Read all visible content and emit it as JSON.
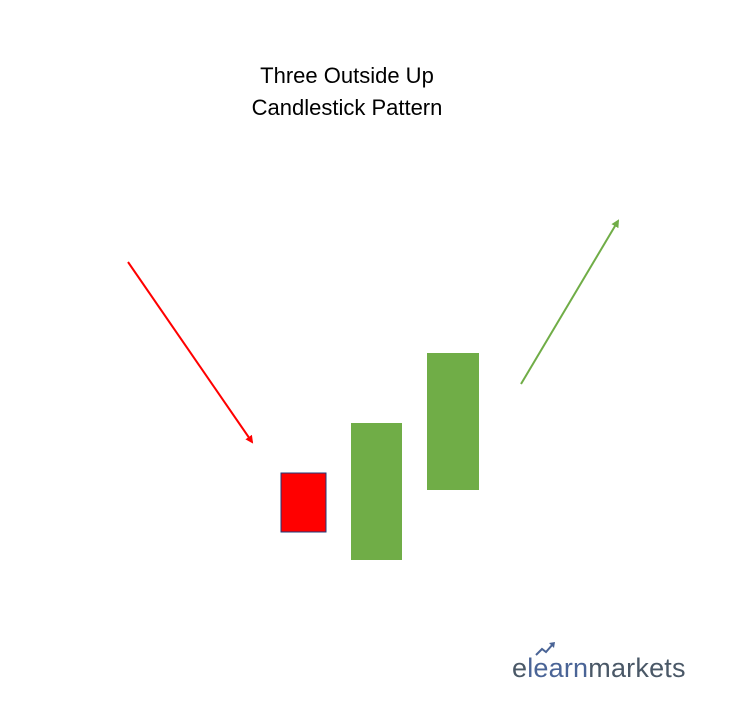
{
  "title": {
    "line1": "Three Outside Up",
    "line2": "Candlestick Pattern"
  },
  "candles": [
    {
      "name": "bearish-candle",
      "color": "#ff0000",
      "border": "#1f3a7a"
    },
    {
      "name": "bullish-engulfing-candle",
      "color": "#70ad47"
    },
    {
      "name": "bullish-confirmation-candle",
      "color": "#70ad47"
    }
  ],
  "arrows": [
    {
      "name": "downtrend-arrow",
      "color": "#ff0000"
    },
    {
      "name": "uptrend-arrow",
      "color": "#70ad47"
    }
  ],
  "logo": {
    "part1": "e",
    "part2": "learn",
    "part3": "markets",
    "mark_icon": "rising-arrow-icon"
  }
}
